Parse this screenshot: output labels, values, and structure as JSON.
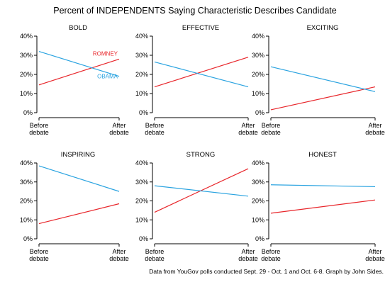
{
  "title": "Percent of INDEPENDENTS Saying Characteristic Describes Candidate",
  "footer": "Data from YouGov polls conducted Sept. 29 - Oct. 1 and Oct. 6-8. Graph by John Sides.",
  "colors": {
    "romney": "#e8262b",
    "obama": "#2aa3e0",
    "axis": "#000000"
  },
  "chart_data": [
    {
      "type": "line",
      "title": "BOLD",
      "categories": [
        "Before\ndebate",
        "After\ndebate"
      ],
      "ylim": [
        0,
        40
      ],
      "yticks": [
        "0%",
        "10%",
        "20%",
        "30%",
        "40%"
      ],
      "series": [
        {
          "name": "ROMNEY",
          "values": [
            14.5,
            28
          ]
        },
        {
          "name": "OBAMA",
          "values": [
            32,
            19
          ]
        }
      ]
    },
    {
      "type": "line",
      "title": "EFFECTIVE",
      "categories": [
        "Before\ndebate",
        "After\ndebate"
      ],
      "ylim": [
        0,
        40
      ],
      "yticks": [
        "0%",
        "10%",
        "20%",
        "30%",
        "40%"
      ],
      "series": [
        {
          "values": [
            13.5,
            29
          ]
        },
        {
          "values": [
            26.5,
            13.5
          ]
        }
      ]
    },
    {
      "type": "line",
      "title": "EXCITING",
      "categories": [
        "Before\ndebate",
        "After\ndebate"
      ],
      "ylim": [
        0,
        40
      ],
      "yticks": [
        "0%",
        "10%",
        "20%",
        "30%",
        "40%"
      ],
      "series": [
        {
          "values": [
            1.5,
            13.5
          ]
        },
        {
          "values": [
            24,
            11
          ]
        }
      ]
    },
    {
      "type": "line",
      "title": "INSPIRING",
      "categories": [
        "Before\ndebate",
        "After\ndebate"
      ],
      "ylim": [
        0,
        40
      ],
      "yticks": [
        "0%",
        "10%",
        "20%",
        "30%",
        "40%"
      ],
      "series": [
        {
          "values": [
            8,
            18.5
          ]
        },
        {
          "values": [
            38.5,
            25
          ]
        }
      ]
    },
    {
      "type": "line",
      "title": "STRONG",
      "categories": [
        "Before\ndebate",
        "After\ndebate"
      ],
      "ylim": [
        0,
        40
      ],
      "yticks": [
        "0%",
        "10%",
        "20%",
        "30%",
        "40%"
      ],
      "series": [
        {
          "values": [
            14,
            37
          ]
        },
        {
          "values": [
            28,
            22.5
          ]
        }
      ]
    },
    {
      "type": "line",
      "title": "HONEST",
      "categories": [
        "Before\ndebate",
        "After\ndebate"
      ],
      "ylim": [
        0,
        40
      ],
      "yticks": [
        "0%",
        "10%",
        "20%",
        "30%",
        "40%"
      ],
      "series": [
        {
          "values": [
            13.5,
            20.5
          ]
        },
        {
          "values": [
            28.5,
            27.5
          ]
        }
      ]
    }
  ]
}
